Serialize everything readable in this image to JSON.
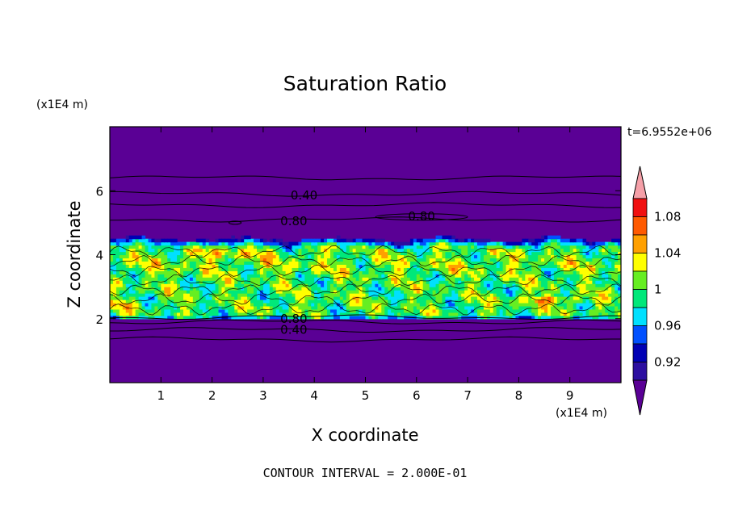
{
  "chart_data": {
    "type": "heatmap",
    "title": "Saturation Ratio",
    "xlabel": "X coordinate",
    "ylabel": "Z coordinate",
    "x_unit": "(x1E4 m)",
    "y_unit": "(x1E4 m)",
    "xlim": [
      0,
      10
    ],
    "ylim": [
      0,
      8
    ],
    "xticks": [
      "1",
      "2",
      "3",
      "4",
      "5",
      "6",
      "7",
      "8",
      "9"
    ],
    "yticks": [
      "2",
      "4",
      "6"
    ],
    "time_label": "t=6.9552e+06",
    "footer": "CONTOUR INTERVAL = 2.000E-01",
    "colorbar": {
      "labels": [
        "0.92",
        "0.96",
        "1",
        "1.04",
        "1.08"
      ],
      "levels": [
        0.9,
        0.92,
        0.94,
        0.96,
        0.98,
        1.0,
        1.02,
        1.04,
        1.06,
        1.08,
        1.1
      ],
      "colors": [
        "#5a0095",
        "#2c0fa0",
        "#0000b4",
        "#0050ff",
        "#00e0ff",
        "#00e87a",
        "#66ee22",
        "#ffff00",
        "#ffa000",
        "#ff5a00",
        "#f01010",
        "#f5a0a8"
      ]
    },
    "contour_labels": [
      {
        "text": "0.40",
        "x": 3.8,
        "z": 5.85
      },
      {
        "text": "0.80",
        "x": 3.6,
        "z": 5.05
      },
      {
        "text": "0.80",
        "x": 6.1,
        "z": 5.2
      },
      {
        "text": "0.80",
        "x": 3.6,
        "z": 2.0
      },
      {
        "text": "0.40",
        "x": 3.6,
        "z": 1.65
      }
    ],
    "contour_lines_z": [
      6.4,
      5.9,
      5.55,
      5.1,
      2.05,
      1.9,
      1.65,
      1.35
    ],
    "moist_layer_z": [
      2.0,
      4.5
    ],
    "background_color": "#5a0095"
  }
}
